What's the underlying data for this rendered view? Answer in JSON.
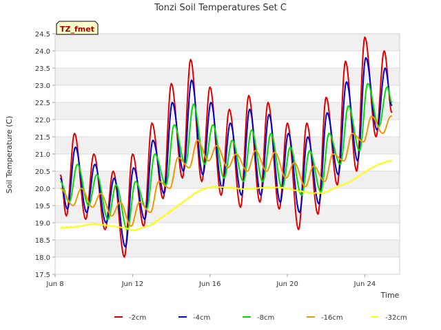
{
  "chart_data": {
    "type": "line",
    "title": "Tonzi Soil Temperatures Set C",
    "xlabel": "Time",
    "ylabel": "Soil Temperature (C)",
    "annotation": "TZ_fmet",
    "x_range_days": [
      8,
      25.8
    ],
    "x_ticks": [
      {
        "day": 8,
        "label": "Jun 8"
      },
      {
        "day": 12,
        "label": "Jun 12"
      },
      {
        "day": 16,
        "label": "Jun 16"
      },
      {
        "day": 20,
        "label": "Jun 20"
      },
      {
        "day": 24,
        "label": "Jun 24"
      }
    ],
    "ylim": [
      17.5,
      24.5
    ],
    "y_ticks": [
      "17.5",
      "18.0",
      "18.5",
      "19.0",
      "19.5",
      "20.0",
      "20.5",
      "21.0",
      "21.5",
      "22.0",
      "22.5",
      "23.0",
      "23.5",
      "24.0",
      "24.5"
    ],
    "grid": true,
    "legend_position": "bottom",
    "series": [
      {
        "name": "-2cm",
        "color": "#dd0000",
        "start_day": 8.27,
        "start_value": 20.4,
        "extremes": [
          {
            "max_day": 9.0,
            "min": 19.2,
            "max": 21.6
          },
          {
            "max_day": 10.0,
            "min": 19.1,
            "max": 21.0
          },
          {
            "max_day": 11.0,
            "min": 18.8,
            "max": 20.5
          },
          {
            "max_day": 12.0,
            "min": 18.0,
            "max": 21.0
          },
          {
            "max_day": 13.0,
            "min": 18.9,
            "max": 21.9
          },
          {
            "max_day": 14.0,
            "min": 19.7,
            "max": 23.05
          },
          {
            "max_day": 15.0,
            "min": 20.3,
            "max": 23.75
          },
          {
            "max_day": 16.0,
            "min": 20.2,
            "max": 22.95
          },
          {
            "max_day": 17.0,
            "min": 19.8,
            "max": 22.3
          },
          {
            "max_day": 18.0,
            "min": 19.45,
            "max": 22.7
          },
          {
            "max_day": 19.0,
            "min": 19.6,
            "max": 22.5
          },
          {
            "max_day": 20.0,
            "min": 19.4,
            "max": 21.9
          },
          {
            "max_day": 21.0,
            "min": 18.8,
            "max": 21.9
          },
          {
            "max_day": 22.0,
            "min": 19.25,
            "max": 22.65
          },
          {
            "max_day": 23.0,
            "min": 20.1,
            "max": 23.7
          },
          {
            "max_day": 24.0,
            "min": 20.5,
            "max": 24.4
          },
          {
            "max_day": 25.0,
            "min": 21.5,
            "max": 24.0
          }
        ],
        "end_day": 25.4,
        "end_value": 22.2
      },
      {
        "name": "-4cm",
        "color": "#0000cc",
        "start_day": 8.27,
        "start_value": 20.3,
        "extremes": [
          {
            "max_day": 9.05,
            "min": 19.4,
            "max": 21.2
          },
          {
            "max_day": 10.05,
            "min": 19.3,
            "max": 20.7
          },
          {
            "max_day": 11.05,
            "min": 19.0,
            "max": 20.3
          },
          {
            "max_day": 12.05,
            "min": 18.3,
            "max": 20.6
          },
          {
            "max_day": 13.05,
            "min": 19.1,
            "max": 21.4
          },
          {
            "max_day": 14.05,
            "min": 19.85,
            "max": 22.5
          },
          {
            "max_day": 15.05,
            "min": 20.5,
            "max": 23.15
          },
          {
            "max_day": 16.05,
            "min": 20.4,
            "max": 22.5
          },
          {
            "max_day": 17.05,
            "min": 20.0,
            "max": 21.9
          },
          {
            "max_day": 18.05,
            "min": 19.8,
            "max": 22.3
          },
          {
            "max_day": 19.05,
            "min": 19.8,
            "max": 22.15
          },
          {
            "max_day": 20.05,
            "min": 19.6,
            "max": 21.6
          },
          {
            "max_day": 21.05,
            "min": 19.3,
            "max": 21.5
          },
          {
            "max_day": 22.05,
            "min": 19.55,
            "max": 22.2
          },
          {
            "max_day": 23.05,
            "min": 20.4,
            "max": 23.1
          },
          {
            "max_day": 24.05,
            "min": 20.8,
            "max": 23.8
          },
          {
            "max_day": 25.05,
            "min": 21.7,
            "max": 23.5
          }
        ],
        "end_day": 25.4,
        "end_value": 22.4
      },
      {
        "name": "-8cm",
        "color": "#00dd00",
        "start_day": 8.27,
        "start_value": 20.2,
        "extremes": [
          {
            "max_day": 9.15,
            "min": 19.6,
            "max": 20.7
          },
          {
            "max_day": 10.15,
            "min": 19.5,
            "max": 20.4
          },
          {
            "max_day": 11.15,
            "min": 19.1,
            "max": 20.1
          },
          {
            "max_day": 12.15,
            "min": 18.8,
            "max": 20.2
          },
          {
            "max_day": 13.15,
            "min": 19.4,
            "max": 21.0
          },
          {
            "max_day": 14.15,
            "min": 20.1,
            "max": 21.85
          },
          {
            "max_day": 15.15,
            "min": 20.7,
            "max": 22.45
          },
          {
            "max_day": 16.15,
            "min": 20.7,
            "max": 21.85
          },
          {
            "max_day": 17.15,
            "min": 20.3,
            "max": 21.4
          },
          {
            "max_day": 18.15,
            "min": 20.2,
            "max": 21.7
          },
          {
            "max_day": 19.15,
            "min": 20.2,
            "max": 21.6
          },
          {
            "max_day": 20.15,
            "min": 20.0,
            "max": 21.2
          },
          {
            "max_day": 21.15,
            "min": 19.8,
            "max": 21.1
          },
          {
            "max_day": 22.15,
            "min": 19.9,
            "max": 21.6
          },
          {
            "max_day": 23.15,
            "min": 20.7,
            "max": 22.4
          },
          {
            "max_day": 24.15,
            "min": 21.1,
            "max": 23.05
          },
          {
            "max_day": 25.15,
            "min": 21.8,
            "max": 22.95
          }
        ],
        "end_day": 25.4,
        "end_value": 22.5
      },
      {
        "name": "-16cm",
        "color": "#ee9900",
        "start_day": 8.27,
        "start_value": 20.0,
        "extremes": [
          {
            "max_day": 9.35,
            "min": 19.5,
            "max": 20.0
          },
          {
            "max_day": 10.35,
            "min": 19.45,
            "max": 19.85
          },
          {
            "max_day": 11.35,
            "min": 19.2,
            "max": 19.6
          },
          {
            "max_day": 12.35,
            "min": 18.9,
            "max": 19.6
          },
          {
            "max_day": 13.35,
            "min": 19.3,
            "max": 20.2
          },
          {
            "max_day": 14.35,
            "min": 20.0,
            "max": 20.9
          },
          {
            "max_day": 15.35,
            "min": 20.6,
            "max": 21.4
          },
          {
            "max_day": 16.35,
            "min": 20.8,
            "max": 21.25
          },
          {
            "max_day": 17.35,
            "min": 20.6,
            "max": 21.0
          },
          {
            "max_day": 18.35,
            "min": 20.5,
            "max": 21.1
          },
          {
            "max_day": 19.35,
            "min": 20.5,
            "max": 21.05
          },
          {
            "max_day": 20.35,
            "min": 20.3,
            "max": 20.75
          },
          {
            "max_day": 21.35,
            "min": 20.05,
            "max": 20.65
          },
          {
            "max_day": 22.35,
            "min": 20.2,
            "max": 21.0
          },
          {
            "max_day": 23.35,
            "min": 20.8,
            "max": 21.6
          },
          {
            "max_day": 24.35,
            "min": 21.35,
            "max": 22.1
          },
          {
            "max_day": 25.35,
            "min": 21.6,
            "max": 22.1
          }
        ],
        "end_day": 25.4,
        "end_value": 22.1
      },
      {
        "name": "-32cm",
        "color": "#ffff00",
        "points": [
          [
            8.27,
            18.85
          ],
          [
            9,
            18.88
          ],
          [
            10,
            18.97
          ],
          [
            11,
            18.9
          ],
          [
            11.6,
            18.85
          ],
          [
            12.1,
            18.78
          ],
          [
            12.6,
            18.88
          ],
          [
            13,
            18.95
          ],
          [
            13.5,
            19.15
          ],
          [
            14,
            19.35
          ],
          [
            14.6,
            19.6
          ],
          [
            15.2,
            19.85
          ],
          [
            15.7,
            20.0
          ],
          [
            16.2,
            20.05
          ],
          [
            17,
            20.02
          ],
          [
            17.8,
            19.98
          ],
          [
            18.6,
            20.02
          ],
          [
            19.4,
            20.03
          ],
          [
            20,
            20.0
          ],
          [
            20.6,
            19.92
          ],
          [
            21.2,
            19.87
          ],
          [
            21.8,
            19.85
          ],
          [
            22.6,
            20.05
          ],
          [
            23.2,
            20.18
          ],
          [
            23.8,
            20.4
          ],
          [
            24.3,
            20.58
          ],
          [
            24.8,
            20.72
          ],
          [
            25.4,
            20.82
          ]
        ]
      }
    ]
  }
}
